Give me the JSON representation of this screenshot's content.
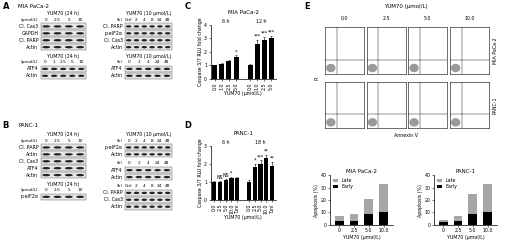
{
  "panels": [
    "A",
    "B",
    "C",
    "D",
    "E"
  ],
  "blots": [
    {
      "cell_line": "MIA PaCa-2",
      "groups": [
        {
          "treatment": "YUM70 (24 h)",
          "unit": "(μmol/L)",
          "lanes": [
            "0",
            "2.5",
            "5",
            "10"
          ],
          "bands": [
            "Cl. Cas3",
            "GAPDH",
            "Cl. PARP",
            "Actin"
          ]
        },
        {
          "treatment": "YUM70 (24 h)",
          "unit": "(μmol/L)",
          "lanes": [
            "0",
            "1",
            "2.5",
            "5",
            "10"
          ],
          "bands": [
            "ATF4",
            "Actin"
          ]
        },
        {
          "treatment": "YUM70 (10 μmol/L)",
          "unit": "(h)",
          "lanes": [
            "Ctrl",
            "2",
            "4",
            "8",
            "24",
            "48"
          ],
          "bands": [
            "Cl. PARP",
            "p-eIF2α",
            "Cl. Cas3",
            "Actin"
          ]
        },
        {
          "treatment": "YUM70 (10 μmol/L)",
          "unit": "(h)",
          "lanes": [
            "0",
            "2",
            "4",
            "24",
            "48"
          ],
          "bands": [
            "ATF4",
            "Actin"
          ]
        }
      ]
    },
    {
      "cell_line": "PANC-1",
      "groups": [
        {
          "treatment": "YUM70 (24 h)",
          "unit": "(μmol/L)",
          "lanes": [
            "0",
            "2.5",
            "5",
            "10"
          ],
          "bands": [
            "Cl. PARP",
            "Actin",
            "Cl. Cas3",
            "ATF4",
            "Actin"
          ]
        },
        {
          "treatment": "YUM70 (24 h)",
          "unit": "(μmol/L)",
          "lanes": [
            "0",
            "2.5",
            "5",
            "10"
          ],
          "bands": [
            "p-eIF2α"
          ]
        },
        {
          "treatment": "YUM70 (10 μmol/L)",
          "unit": "(h)",
          "lanes": [
            "0",
            "2",
            "4",
            "8",
            "24",
            "48"
          ],
          "bands": [
            "p-eIF2α",
            "Actin"
          ]
        },
        {
          "unit": "(h)",
          "lanes": [
            "0",
            "2",
            "4",
            "24",
            "48"
          ],
          "bands": [
            "ATF4",
            "Actin"
          ]
        },
        {
          "unit": "(h)",
          "lanes": [
            "Ctrl",
            "2",
            "4",
            "8",
            "24",
            "48"
          ],
          "bands": [
            "Cl. PARP",
            "Cl. Cas3",
            "Actin"
          ]
        }
      ]
    }
  ],
  "chart_data": [
    {
      "type": "bar",
      "title": "MIA PaCa-2",
      "y_label": "Caspase 3/7 RLU fold change",
      "x_label": "YUM70 (μmol/L)",
      "ylim": [
        0,
        4
      ],
      "yticks": [
        0,
        1,
        2,
        3,
        4
      ],
      "color": "#000000",
      "groups": [
        {
          "name": "6 h",
          "categories": [
            "0.0",
            "1.0",
            "2.5",
            "5.0"
          ],
          "values": [
            1.0,
            1.1,
            1.3,
            1.6
          ],
          "errors": [
            0.05,
            0.1,
            0.1,
            0.15
          ],
          "annotations": [
            null,
            null,
            null,
            "*"
          ]
        },
        {
          "name": "12 h",
          "categories": [
            "0.0",
            "1.0",
            "2.5",
            "5.0"
          ],
          "values": [
            1.0,
            2.6,
            2.9,
            3.0
          ],
          "errors": [
            0.1,
            0.3,
            0.2,
            0.2
          ],
          "annotations": [
            null,
            "***",
            "***",
            "***"
          ]
        }
      ]
    },
    {
      "type": "bar",
      "title": "PANC-1",
      "y_label": "Caspase 3/7 RLU fold change",
      "x_label": "YUM70 (μmol/L)",
      "ylim": [
        0,
        3
      ],
      "yticks": [
        0,
        1,
        2,
        3
      ],
      "color": "#000000",
      "groups": [
        {
          "name": "6 h",
          "categories": [
            "0.0",
            "2.5",
            "5.0",
            "10.0",
            "Tuni"
          ],
          "values": [
            1.0,
            1.0,
            1.1,
            1.2,
            1.2
          ],
          "errors": [
            0.05,
            0.05,
            0.05,
            0.1,
            0.1
          ],
          "annotations": [
            null,
            "NS",
            "NS",
            "*",
            null
          ]
        },
        {
          "name": "18 h",
          "categories": [
            "0.0",
            "2.5",
            "5.0",
            "10.0",
            "Tuni"
          ],
          "values": [
            1.0,
            1.8,
            2.0,
            2.3,
            1.9
          ],
          "errors": [
            0.1,
            0.2,
            0.2,
            0.2,
            0.2
          ],
          "annotations": [
            null,
            "*",
            "***",
            "**",
            "**"
          ]
        }
      ]
    },
    {
      "type": "bar",
      "stacked": true,
      "title": "MIA PaCa-2",
      "y_label": "Apoptosis (%)",
      "x_label": "YUM70 (μmol/L)",
      "categories": [
        "0",
        "2.5",
        "5.0",
        "10.0"
      ],
      "ylim": [
        0,
        40
      ],
      "yticks": [
        0,
        10,
        20,
        30,
        40
      ],
      "legend": "upper left",
      "series": [
        {
          "name": "Early",
          "color": "#000000",
          "values": [
            3,
            3,
            9,
            10
          ]
        },
        {
          "name": "Late",
          "color": "#a6a6a6",
          "values": [
            4,
            6,
            12,
            23
          ]
        }
      ]
    },
    {
      "type": "bar",
      "stacked": true,
      "title": "PANC-1",
      "y_label": "Apoptosis (%)",
      "x_label": "YUM70 (μmol/L)",
      "categories": [
        "0",
        "2.5",
        "5.0",
        "10.0"
      ],
      "ylim": [
        0,
        40
      ],
      "yticks": [
        0,
        10,
        20,
        30,
        40
      ],
      "legend": "upper left",
      "series": [
        {
          "name": "Early",
          "color": "#000000",
          "values": [
            2,
            3,
            9,
            10
          ]
        },
        {
          "name": "Late",
          "color": "#a6a6a6",
          "values": [
            2,
            4,
            16,
            23
          ]
        }
      ]
    }
  ],
  "flow": {
    "header": "YUM70 (μmol/L)",
    "doses": [
      "0.0",
      "2.5",
      "5.0",
      "10.0"
    ],
    "rows": [
      "MIA PaCa-2",
      "PANC-1"
    ],
    "x_label": "Annexin V",
    "y_label": "PI"
  }
}
